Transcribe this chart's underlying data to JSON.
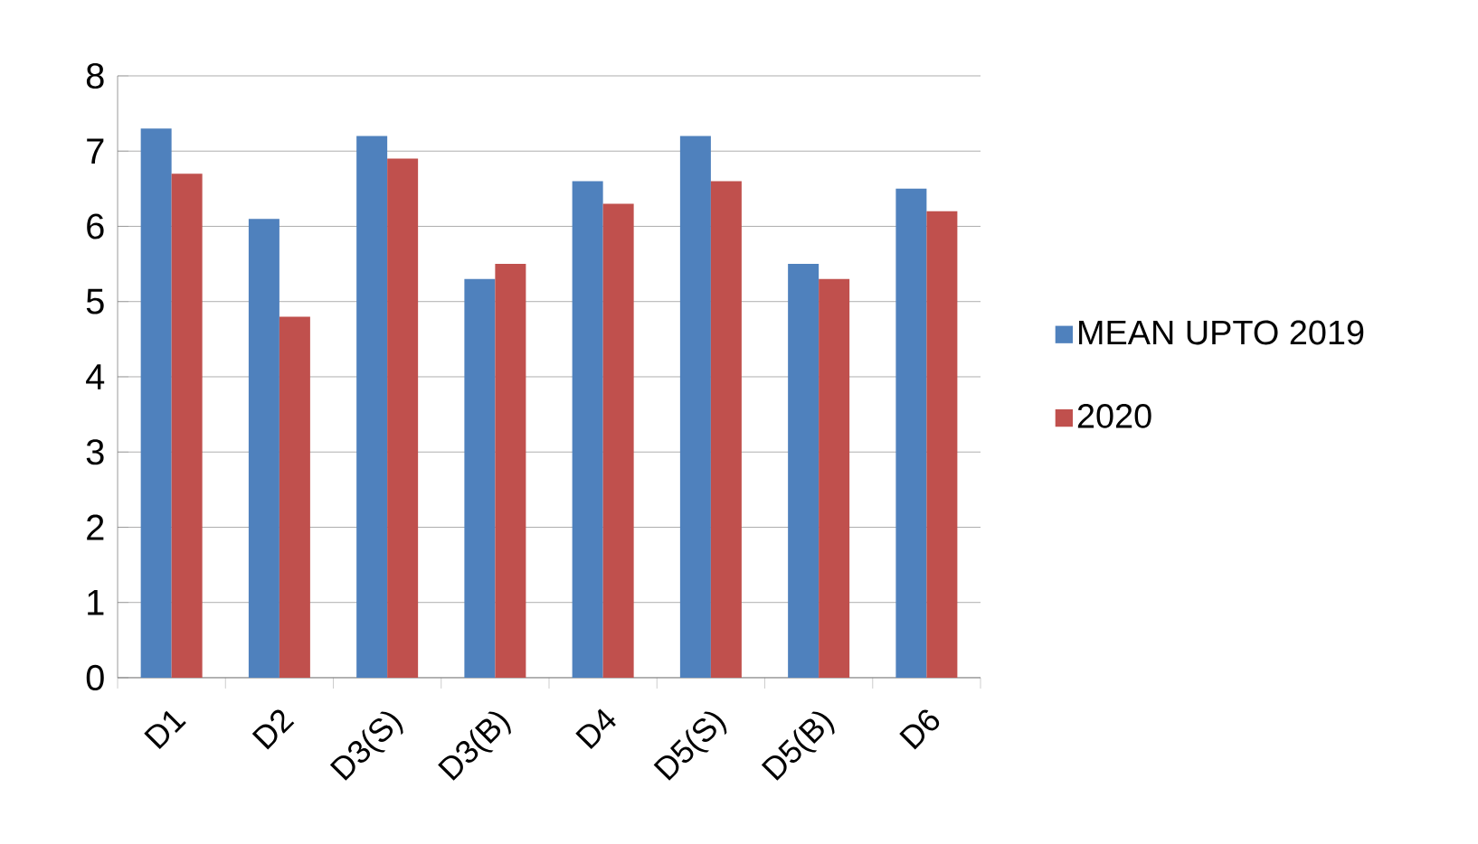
{
  "chart_data": {
    "type": "bar",
    "categories": [
      "D1",
      "D2",
      "D3(S)",
      "D3(B)",
      "D4",
      "D5(S)",
      "D5(B)",
      "D6"
    ],
    "series": [
      {
        "name": "MEAN UPTO 2019",
        "color": "#4f81bd",
        "values": [
          7.3,
          6.1,
          7.2,
          5.3,
          6.6,
          7.2,
          5.5,
          6.5
        ]
      },
      {
        "name": "2020",
        "color": "#c0504d",
        "values": [
          6.7,
          4.8,
          6.9,
          5.5,
          6.3,
          6.6,
          5.3,
          6.2
        ]
      }
    ],
    "ylim": [
      0,
      8
    ],
    "yticks": [
      0,
      1,
      2,
      3,
      4,
      5,
      6,
      7,
      8
    ],
    "grid": "y",
    "legend": "right"
  }
}
